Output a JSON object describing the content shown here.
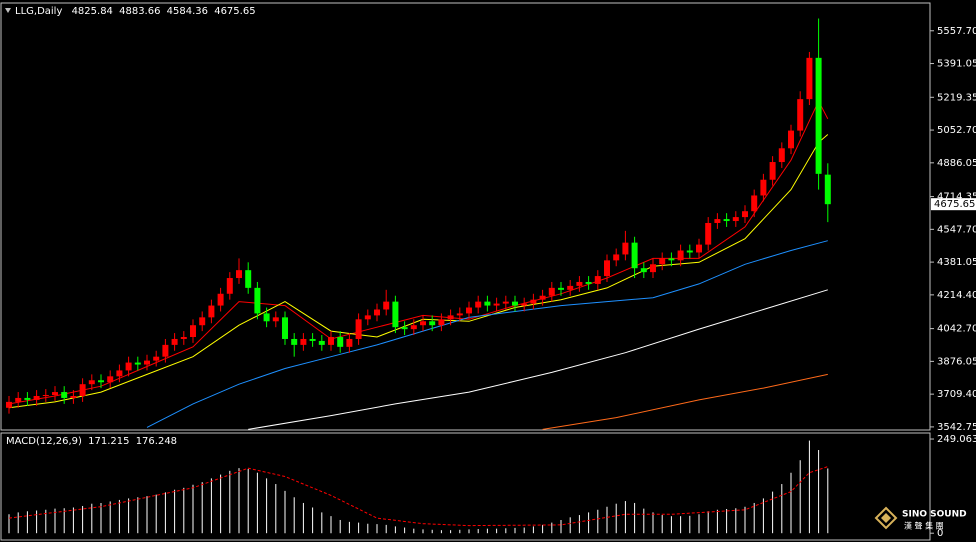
{
  "chart_data": [
    {
      "type": "candlestick",
      "title": "LLG,Daily",
      "up_color": "#ff0000",
      "down_color": "#00ff00",
      "open": [
        3640,
        3670,
        3690,
        3680,
        3700,
        3705,
        3720,
        3690,
        3700,
        3760,
        3780,
        3770,
        3800,
        3830,
        3870,
        3860,
        3880,
        3900,
        3960,
        3990,
        4000,
        4060,
        4100,
        4160,
        4220,
        4300,
        4340,
        4250,
        4120,
        4080,
        4100,
        3990,
        3960,
        3990,
        3980,
        3960,
        4000,
        3950,
        3990,
        4090,
        4110,
        4140,
        4180,
        4050,
        4040,
        4060,
        4080,
        4060,
        4090,
        4110,
        4120,
        4150,
        4180,
        4160,
        4170,
        4180,
        4160,
        4170,
        4190,
        4210,
        4250,
        4240,
        4260,
        4280,
        4270,
        4310,
        4390,
        4420,
        4480,
        4350,
        4330,
        4370,
        4400,
        4390,
        4440,
        4430,
        4470,
        4580,
        4600,
        4590,
        4610,
        4640,
        4720,
        4800,
        4890,
        4960,
        5050,
        5210,
        5420,
        4825.84
      ],
      "high": [
        3700,
        3720,
        3720,
        3730,
        3735,
        3750,
        3750,
        3730,
        3790,
        3810,
        3810,
        3830,
        3860,
        3900,
        3900,
        3910,
        3930,
        3990,
        4020,
        4030,
        4090,
        4130,
        4190,
        4250,
        4330,
        4400,
        4380,
        4280,
        4150,
        4130,
        4130,
        4020,
        4020,
        4020,
        4010,
        4030,
        4030,
        4020,
        4120,
        4140,
        4170,
        4240,
        4210,
        4080,
        4090,
        4110,
        4110,
        4120,
        4140,
        4150,
        4180,
        4210,
        4210,
        4200,
        4210,
        4210,
        4200,
        4220,
        4240,
        4280,
        4280,
        4290,
        4310,
        4310,
        4340,
        4420,
        4450,
        4540,
        4510,
        4380,
        4400,
        4430,
        4430,
        4470,
        4470,
        4500,
        4610,
        4630,
        4630,
        4640,
        4670,
        4750,
        4830,
        4920,
        4990,
        5080,
        5250,
        5450,
        5620,
        4883.66
      ],
      "low": [
        3610,
        3640,
        3650,
        3650,
        3670,
        3675,
        3660,
        3660,
        3670,
        3730,
        3740,
        3740,
        3770,
        3800,
        3830,
        3830,
        3850,
        3870,
        3930,
        3960,
        3970,
        4030,
        4070,
        4130,
        4190,
        4270,
        4220,
        4090,
        4050,
        4050,
        3960,
        3900,
        3930,
        3950,
        3930,
        3930,
        3920,
        3920,
        3960,
        4060,
        4080,
        4110,
        4020,
        4010,
        4010,
        4030,
        4030,
        4030,
        4060,
        4080,
        4090,
        4120,
        4130,
        4130,
        4140,
        4130,
        4130,
        4140,
        4160,
        4180,
        4210,
        4210,
        4230,
        4240,
        4240,
        4280,
        4360,
        4390,
        4300,
        4300,
        4300,
        4340,
        4360,
        4360,
        4400,
        4400,
        4440,
        4550,
        4560,
        4560,
        4580,
        4610,
        4690,
        4770,
        4860,
        4930,
        5020,
        5180,
        4750,
        4584.36
      ],
      "close": [
        3670,
        3690,
        3680,
        3700,
        3705,
        3720,
        3690,
        3700,
        3760,
        3780,
        3770,
        3800,
        3830,
        3870,
        3860,
        3880,
        3900,
        3960,
        3990,
        4000,
        4060,
        4100,
        4160,
        4220,
        4300,
        4340,
        4250,
        4120,
        4080,
        4100,
        3990,
        3960,
        3990,
        3980,
        3960,
        4000,
        3950,
        3990,
        4090,
        4110,
        4140,
        4180,
        4050,
        4040,
        4060,
        4080,
        4060,
        4090,
        4110,
        4120,
        4150,
        4180,
        4160,
        4170,
        4180,
        4160,
        4170,
        4190,
        4210,
        4250,
        4240,
        4260,
        4280,
        4270,
        4310,
        4390,
        4420,
        4480,
        4350,
        4330,
        4370,
        4400,
        4390,
        4440,
        4430,
        4470,
        4580,
        4600,
        4590,
        4610,
        4640,
        4720,
        4800,
        4890,
        4960,
        5050,
        5210,
        5420,
        4830,
        4675.65
      ],
      "ma_lines": [
        {
          "color": "#ff0000",
          "x": [
            0,
            5,
            10,
            15,
            20,
            25,
            30,
            35,
            40,
            45,
            50,
            55,
            60,
            65,
            70,
            75,
            80,
            85,
            88,
            89
          ],
          "values": [
            3660,
            3700,
            3750,
            3850,
            3950,
            4180,
            4160,
            3990,
            4050,
            4110,
            4090,
            4160,
            4220,
            4300,
            4400,
            4400,
            4560,
            4900,
            5200,
            5110
          ]
        },
        {
          "color": "#ffff00",
          "x": [
            0,
            5,
            10,
            15,
            20,
            25,
            30,
            35,
            40,
            45,
            50,
            55,
            60,
            65,
            70,
            75,
            80,
            85,
            88,
            89
          ],
          "values": [
            3640,
            3670,
            3720,
            3810,
            3900,
            4060,
            4180,
            4030,
            4000,
            4090,
            4080,
            4150,
            4190,
            4250,
            4360,
            4380,
            4500,
            4750,
            4990,
            5030
          ]
        },
        {
          "color": "#1e90ff",
          "x": [
            15,
            20,
            25,
            30,
            35,
            40,
            45,
            50,
            55,
            60,
            65,
            70,
            75,
            80,
            85,
            89
          ],
          "values": [
            3540,
            3660,
            3760,
            3840,
            3900,
            3960,
            4030,
            4100,
            4130,
            4160,
            4180,
            4200,
            4270,
            4370,
            4440,
            4490
          ]
        },
        {
          "color": "#ffffff",
          "x": [
            26,
            35,
            42,
            50,
            59,
            67,
            75,
            82,
            89
          ],
          "values": [
            3530,
            3600,
            3660,
            3720,
            3820,
            3920,
            4040,
            4140,
            4240
          ]
        },
        {
          "color": "#ff6a1a",
          "x": [
            58,
            66,
            75,
            82,
            89
          ],
          "values": [
            3530,
            3590,
            3680,
            3740,
            3810
          ]
        }
      ],
      "ylim": [
        3527,
        5699
      ],
      "yticks": [
        {
          "value": 5557.7,
          "label": "5557.70"
        },
        5391.05,
        5219.35,
        {
          "value": 5052.7,
          "label": "5052.70"
        },
        4886.05,
        4714.35,
        {
          "value": 4547.7,
          "label": "4547.70"
        },
        4381.05,
        {
          "value": 4214.4,
          "label": "4214.40"
        },
        {
          "value": 4042.7,
          "label": "4042.70"
        },
        3876.05,
        {
          "value": 3709.4,
          "label": "3709.40"
        },
        3542.75
      ]
    },
    {
      "type": "macd",
      "title": "MACD(12,26,9)",
      "histogram": {
        "color": "#ffffff",
        "values": [
          50,
          55,
          58,
          60,
          62,
          65,
          66,
          68,
          72,
          78,
          80,
          84,
          88,
          92,
          95,
          98,
          102,
          108,
          115,
          120,
          128,
          135,
          145,
          155,
          165,
          172,
          170,
          160,
          145,
          130,
          112,
          95,
          80,
          68,
          55,
          45,
          35,
          30,
          28,
          25,
          24,
          22,
          18,
          15,
          12,
          10,
          9,
          8,
          8,
          9,
          10,
          11,
          12,
          12,
          13,
          14,
          15,
          18,
          22,
          28,
          35,
          42,
          48,
          55,
          62,
          70,
          78,
          85,
          80,
          65,
          55,
          48,
          45,
          45,
          46,
          50,
          58,
          62,
          64,
          66,
          70,
          80,
          92,
          110,
          130,
          160,
          193,
          245,
          220,
          171.215
        ]
      },
      "signal": {
        "color": "#ff0000",
        "x": [
          0,
          10,
          20,
          26,
          30,
          35,
          40,
          45,
          50,
          60,
          67,
          72,
          80,
          85,
          87,
          89
        ],
        "values": [
          40,
          70,
          120,
          172,
          150,
          100,
          40,
          25,
          20,
          22,
          50,
          50,
          62,
          110,
          160,
          176.248
        ]
      },
      "ylim": [
        -18,
        265
      ],
      "yticks": [
        249.063,
        0
      ]
    }
  ],
  "logo": {
    "name": "SINO SOUND",
    "subtitle": "漢 聲 集 團"
  }
}
